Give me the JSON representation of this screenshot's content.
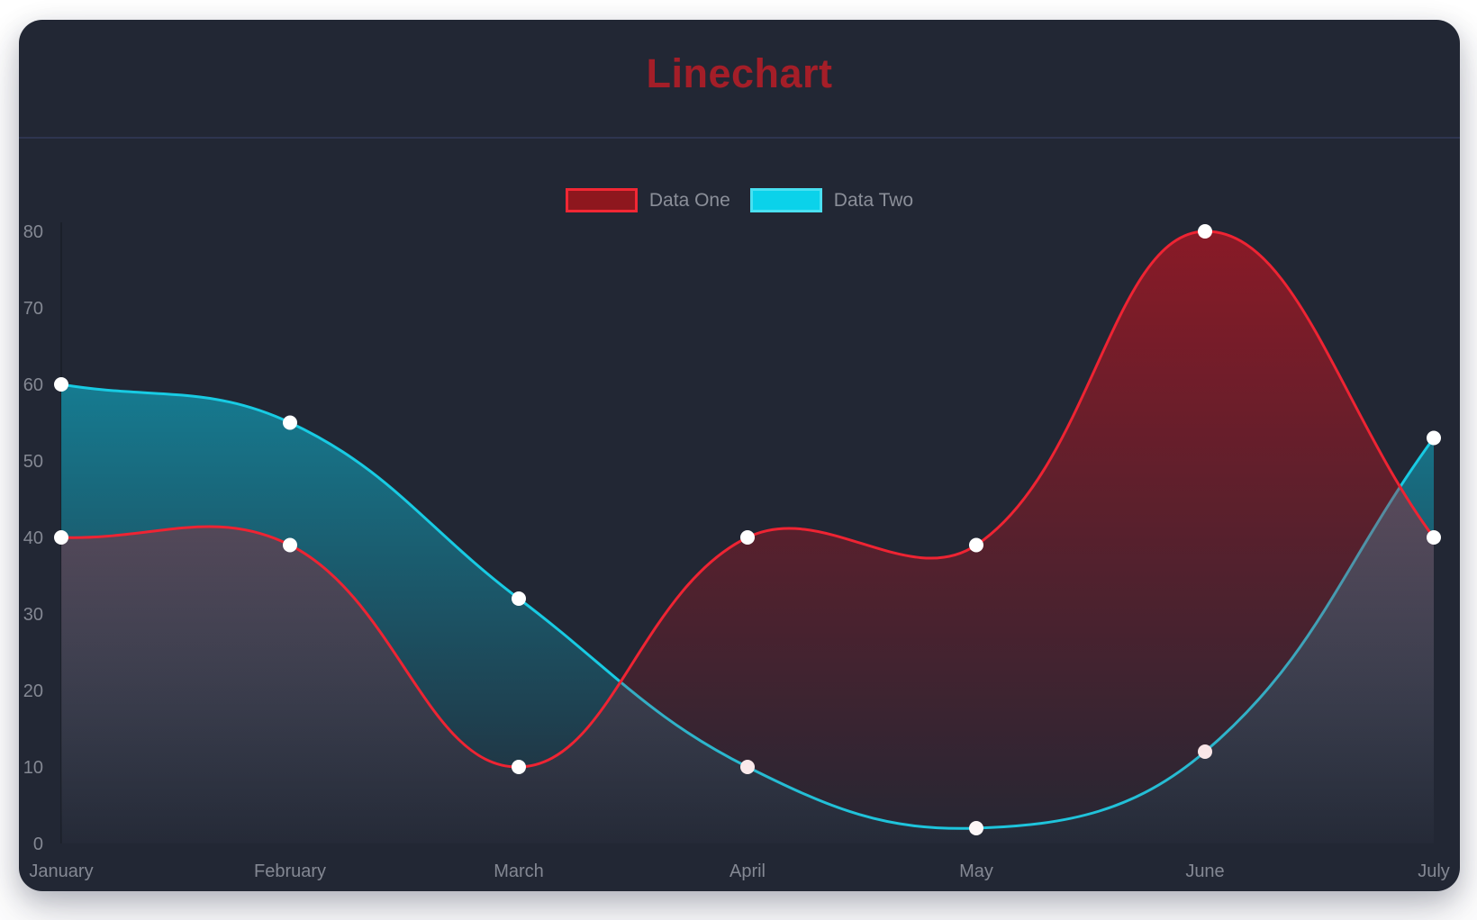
{
  "card": {
    "title": "Linechart",
    "title_color": "#a41e28",
    "background": "#222734",
    "divider_color": "#2e3550"
  },
  "legend": {
    "text_color": "#8b8f99",
    "items": [
      {
        "label": "Data One",
        "swatch_fill": "#8e171e",
        "swatch_border": "#f22734"
      },
      {
        "label": "Data Two",
        "swatch_fill": "#0bd2ea",
        "swatch_border": "#49e0f1"
      }
    ]
  },
  "chart_data": {
    "type": "line",
    "title": "Linechart",
    "categories": [
      "January",
      "February",
      "March",
      "April",
      "May",
      "June",
      "July"
    ],
    "series": [
      {
        "name": "Data One",
        "line_color": "#ee2433",
        "fill_top": "rgba(202,18,30,0.62)",
        "fill_bottom": "rgba(202,18,30,0.02)",
        "values": [
          40,
          39,
          10,
          40,
          39,
          80,
          40
        ]
      },
      {
        "name": "Data Two",
        "line_color": "#18cbe3",
        "fill_top": "rgba(10,205,235,0.68)",
        "fill_bottom": "rgba(10,205,235,0.02)",
        "values": [
          60,
          55,
          32,
          10,
          2,
          12,
          53
        ]
      }
    ],
    "xlabel": "",
    "ylabel": "",
    "ylim": [
      0,
      80
    ],
    "ytick_step": 10,
    "yticks": [
      0,
      10,
      20,
      30,
      40,
      50,
      60,
      70,
      80
    ],
    "grid": "off",
    "legend_position": "top",
    "curve": "bezier",
    "smoothing": 0.4,
    "line_width": 3,
    "point_color": "#ffffff",
    "point_radius": 8,
    "axis_line_color": "rgba(0,0,0,0.25)",
    "tick_label_color": "#848893",
    "tick_font_size": 20,
    "draw_order": "last-series-first"
  }
}
